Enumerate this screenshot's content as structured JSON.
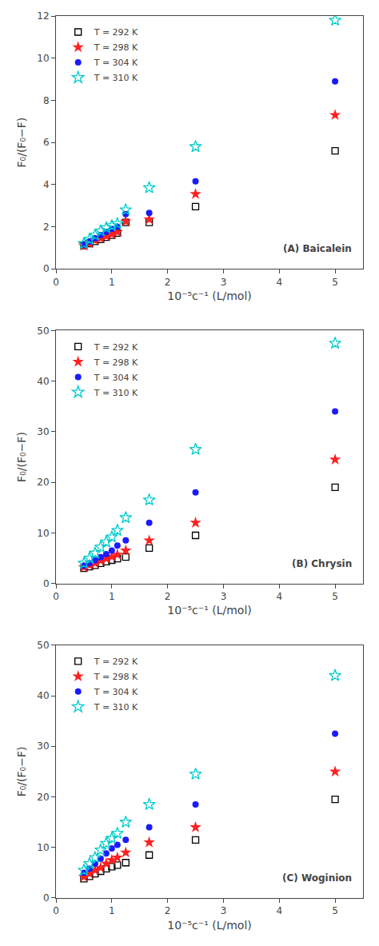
{
  "chart_data": [
    {
      "type": "scatter",
      "x_label": "10⁻⁵c⁻¹ (L/mol)",
      "y_label": "F₀/(F₀−F)",
      "annotations": [
        "(A) Baicalein"
      ],
      "x": [
        0.5,
        0.6,
        0.7,
        0.8,
        0.9,
        1.0,
        1.1,
        1.25,
        1.67,
        2.5,
        5.0
      ],
      "series": [
        {
          "name": "T = 292 K",
          "color": "#000000",
          "marker": "square-open",
          "values": [
            1.1,
            1.2,
            1.3,
            1.4,
            1.5,
            1.6,
            1.7,
            2.2,
            2.2,
            2.95,
            5.6
          ]
        },
        {
          "name": "T = 298 K",
          "color": "#ff2020",
          "marker": "star",
          "values": [
            1.1,
            1.2,
            1.35,
            1.45,
            1.55,
            1.65,
            1.75,
            2.25,
            2.35,
            3.55,
            7.3
          ]
        },
        {
          "name": "T = 304 K",
          "color": "#1a1aff",
          "marker": "circle",
          "values": [
            1.15,
            1.3,
            1.45,
            1.6,
            1.75,
            1.9,
            2.0,
            2.6,
            2.65,
            4.15,
            8.9
          ]
        },
        {
          "name": "T = 310 K",
          "color": "#00cccc",
          "marker": "star-open",
          "values": [
            1.2,
            1.4,
            1.6,
            1.8,
            1.95,
            2.05,
            2.15,
            2.8,
            3.85,
            5.8,
            11.8
          ]
        }
      ],
      "xlim": [
        0,
        5.5
      ],
      "xticks": [
        0,
        1,
        2,
        3,
        4,
        5
      ],
      "ylim": [
        0,
        12
      ],
      "yticks": [
        0,
        2,
        4,
        6,
        8,
        10,
        12
      ],
      "grid": false,
      "legend": "upper left"
    },
    {
      "type": "scatter",
      "x_label": "10⁻⁵c⁻¹ (L/mol)",
      "y_label": "F₀/(F₀−F)",
      "annotations": [
        "(B) Chrysin"
      ],
      "x": [
        0.5,
        0.6,
        0.7,
        0.8,
        0.9,
        1.0,
        1.1,
        1.25,
        1.67,
        2.5,
        5.0
      ],
      "series": [
        {
          "name": "T = 292 K",
          "color": "#000000",
          "marker": "square-open",
          "values": [
            3.0,
            3.3,
            3.6,
            4.0,
            4.3,
            4.6,
            4.9,
            5.2,
            7.0,
            9.5,
            19.0
          ]
        },
        {
          "name": "T = 298 K",
          "color": "#ff2020",
          "marker": "star",
          "values": [
            3.2,
            3.6,
            4.0,
            4.5,
            4.9,
            5.3,
            5.7,
            6.5,
            8.5,
            12.0,
            24.5
          ]
        },
        {
          "name": "T = 304 K",
          "color": "#1a1aff",
          "marker": "circle",
          "values": [
            3.5,
            4.0,
            4.6,
            5.2,
            5.8,
            6.5,
            7.5,
            8.5,
            12.0,
            18.0,
            34.0
          ]
        },
        {
          "name": "T = 310 K",
          "color": "#00cccc",
          "marker": "star-open",
          "values": [
            4.0,
            5.0,
            6.0,
            7.2,
            8.2,
            9.2,
            10.5,
            13.0,
            16.5,
            26.5,
            47.5
          ]
        }
      ],
      "xlim": [
        0,
        5.5
      ],
      "xticks": [
        0,
        1,
        2,
        3,
        4,
        5
      ],
      "ylim": [
        0,
        50
      ],
      "yticks": [
        0,
        10,
        20,
        30,
        40,
        50
      ],
      "grid": false,
      "legend": "upper left"
    },
    {
      "type": "scatter",
      "x_label": "10⁻⁵c⁻¹ (L/mol)",
      "y_label": "F₀/(F₀−F)",
      "annotations": [
        "(C) Woginion"
      ],
      "x": [
        0.5,
        0.6,
        0.7,
        0.8,
        0.9,
        1.0,
        1.1,
        1.25,
        1.67,
        2.5,
        5.0
      ],
      "series": [
        {
          "name": "T = 292 K",
          "color": "#000000",
          "marker": "square-open",
          "values": [
            3.8,
            4.3,
            4.8,
            5.3,
            5.8,
            6.2,
            6.5,
            7.0,
            8.5,
            11.5,
            19.5
          ]
        },
        {
          "name": "T = 298 K",
          "color": "#ff2020",
          "marker": "star",
          "values": [
            4.2,
            4.8,
            5.5,
            6.0,
            6.8,
            7.5,
            8.0,
            9.0,
            11.0,
            14.0,
            25.0
          ]
        },
        {
          "name": "T = 304 K",
          "color": "#1a1aff",
          "marker": "circle",
          "values": [
            5.0,
            5.8,
            6.8,
            7.8,
            8.8,
            9.8,
            10.5,
            11.5,
            14.0,
            18.5,
            32.5
          ]
        },
        {
          "name": "T = 310 K",
          "color": "#00cccc",
          "marker": "star-open",
          "values": [
            5.5,
            6.8,
            8.0,
            9.5,
            10.8,
            11.8,
            12.8,
            15.0,
            18.5,
            24.5,
            44.0
          ]
        }
      ],
      "xlim": [
        0,
        5.5
      ],
      "xticks": [
        0,
        1,
        2,
        3,
        4,
        5
      ],
      "ylim": [
        0,
        50
      ],
      "yticks": [
        0,
        10,
        20,
        30,
        40,
        50
      ],
      "grid": false,
      "legend": "upper left"
    }
  ]
}
